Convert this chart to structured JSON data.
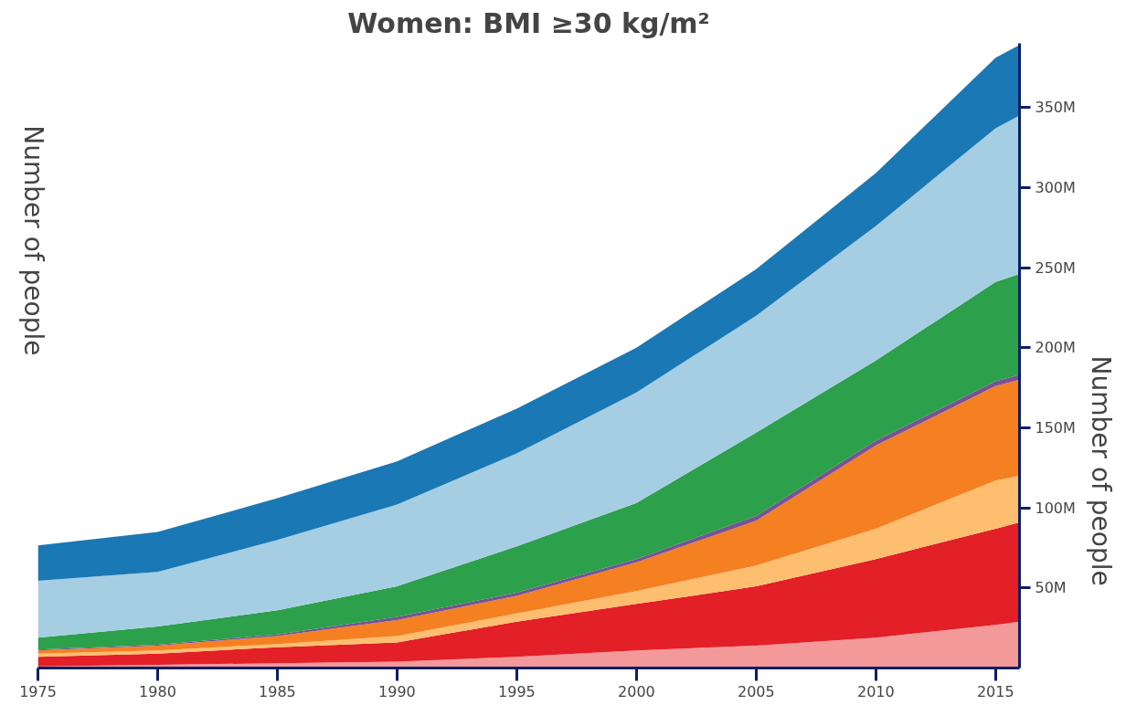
{
  "chart_data": {
    "type": "area",
    "stacked": true,
    "title": "Women: BMI ≥30 kg/m²",
    "ylabel": "Number of people",
    "y2label": "Number of people",
    "x": [
      1975,
      1980,
      1985,
      1990,
      1995,
      2000,
      2005,
      2010,
      2015,
      2016
    ],
    "xlim": [
      1975,
      2016
    ],
    "xticks": [
      1975,
      1980,
      1985,
      1990,
      1995,
      2000,
      2005,
      2010,
      2015
    ],
    "ylim": [
      0,
      390
    ],
    "yticks": [
      {
        "value": 50,
        "label": "50M"
      },
      {
        "value": 100,
        "label": "100M"
      },
      {
        "value": 150,
        "label": "150M"
      },
      {
        "value": 200,
        "label": "200M"
      },
      {
        "value": 250,
        "label": "250M"
      },
      {
        "value": 300,
        "label": "300M"
      },
      {
        "value": 350,
        "label": "350M"
      }
    ],
    "grid": false,
    "series": [
      {
        "color": "#f4999a",
        "values": [
          1,
          2,
          3,
          4,
          7,
          11,
          14,
          19,
          27,
          29
        ]
      },
      {
        "color": "#e31f27",
        "values": [
          6,
          7,
          10,
          12,
          22,
          29,
          37,
          49,
          60,
          62
        ]
      },
      {
        "color": "#fdbe6f",
        "values": [
          2,
          2,
          2,
          4,
          5,
          8,
          13,
          19,
          30,
          29
        ]
      },
      {
        "color": "#f58022",
        "values": [
          2,
          3,
          5,
          10,
          11,
          18,
          28,
          52,
          59,
          60
        ]
      },
      {
        "color": "#7a5195",
        "values": [
          0.5,
          0.5,
          1,
          2,
          2,
          2,
          3,
          3,
          3,
          3
        ]
      },
      {
        "color": "#2ca04a",
        "values": [
          7.5,
          11.5,
          15,
          19,
          29,
          35,
          52,
          50,
          62,
          63
        ]
      },
      {
        "color": "#a6cee3",
        "values": [
          35.5,
          34,
          44,
          51,
          58,
          69,
          73,
          84,
          96,
          99
        ]
      },
      {
        "color": "#1a78b4",
        "values": [
          22,
          25,
          26,
          27,
          28,
          28,
          29,
          33,
          44,
          44
        ]
      }
    ]
  }
}
